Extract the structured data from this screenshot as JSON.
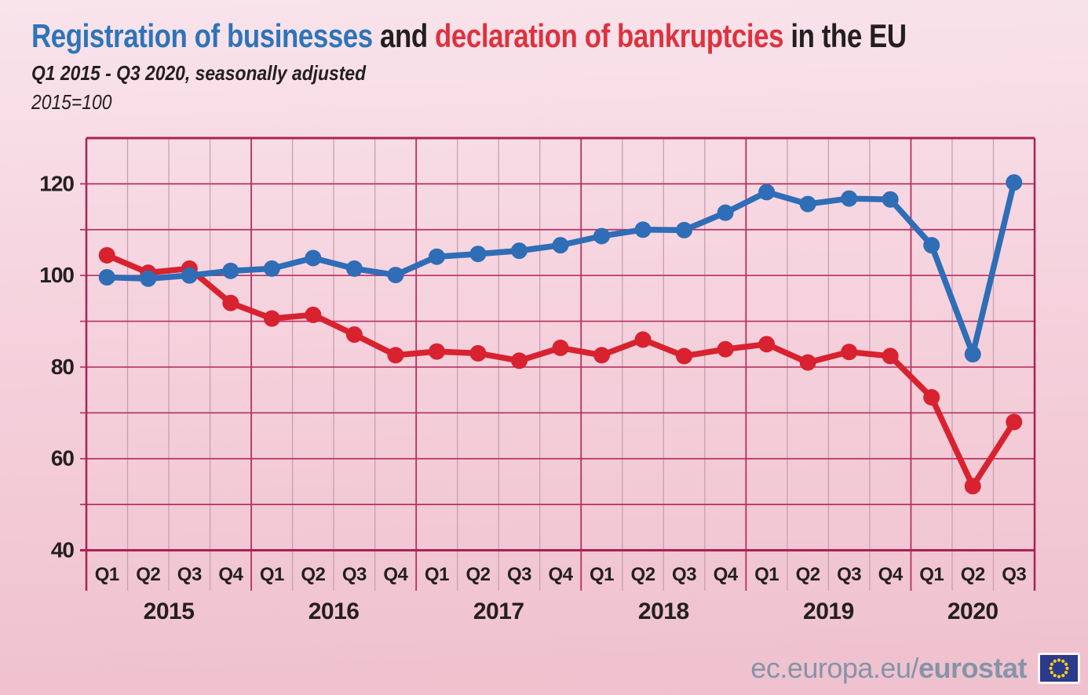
{
  "title": {
    "part_blue": "Registration of businesses",
    "part_and": " and ",
    "part_red": "declaration of bankruptcies",
    "part_eu": " in the EU"
  },
  "subtitle": "Q1 2015  - Q3 2020, seasonally adjusted",
  "index_note": "2015=100",
  "footer": {
    "url_prefix": "ec.europa.eu/",
    "url_bold": "eurostat"
  },
  "colors": {
    "title_blue": "#2e74b8",
    "title_red": "#de323e",
    "text_dark": "#231f20",
    "registrations_blue": "#2f6db6",
    "bankruptcies_red": "#d8222f",
    "grid_horizontal": "#b63060",
    "grid_quarter": "#c7a0b1",
    "grid_year": "#b63060",
    "plot_border": "#ab2156",
    "background_top": "#f9e4ec",
    "background_bottom": "#efc0cd",
    "footer_text": "#8594a9",
    "flag_blue": "#2c3a8c",
    "flag_stars": "#f7d117"
  },
  "chart_data": {
    "type": "line",
    "title": "Registration of businesses and declaration of bankruptcies in the EU",
    "subtitle": "Q1 2015 - Q3 2020, seasonally adjusted",
    "index_base": "2015=100",
    "x_quarters": [
      "Q1",
      "Q2",
      "Q3",
      "Q4",
      "Q1",
      "Q2",
      "Q3",
      "Q4",
      "Q1",
      "Q2",
      "Q3",
      "Q4",
      "Q1",
      "Q2",
      "Q3",
      "Q4",
      "Q1",
      "Q2",
      "Q3",
      "Q4",
      "Q1",
      "Q2",
      "Q3"
    ],
    "year_groups": [
      {
        "label": "2015",
        "quarters": 4
      },
      {
        "label": "2016",
        "quarters": 4
      },
      {
        "label": "2017",
        "quarters": 4
      },
      {
        "label": "2018",
        "quarters": 4
      },
      {
        "label": "2019",
        "quarters": 4
      },
      {
        "label": "2020",
        "quarters": 3
      }
    ],
    "ylim": [
      40,
      130
    ],
    "y_grid_step": 10,
    "y_tick_labels": [
      40,
      60,
      80,
      100,
      120
    ],
    "grid": "on",
    "legend": "in-title",
    "series": [
      {
        "name": "Registration of businesses",
        "color": "#2f6db6",
        "values": [
          99.6,
          99.3,
          100.0,
          101.0,
          101.5,
          103.8,
          101.5,
          100.1,
          104.1,
          104.7,
          105.4,
          106.6,
          108.6,
          110.0,
          109.9,
          113.7,
          118.2,
          115.6,
          116.8,
          116.6,
          106.6,
          82.8,
          120.3
        ]
      },
      {
        "name": "Declaration of bankruptcies",
        "color": "#d8222f",
        "values": [
          104.4,
          100.6,
          101.5,
          94.0,
          90.6,
          91.4,
          87.1,
          82.6,
          83.4,
          83.0,
          81.4,
          84.2,
          82.6,
          86.0,
          82.4,
          83.9,
          85.0,
          81.0,
          83.3,
          82.4,
          73.4,
          54.0,
          68.0
        ]
      }
    ]
  }
}
